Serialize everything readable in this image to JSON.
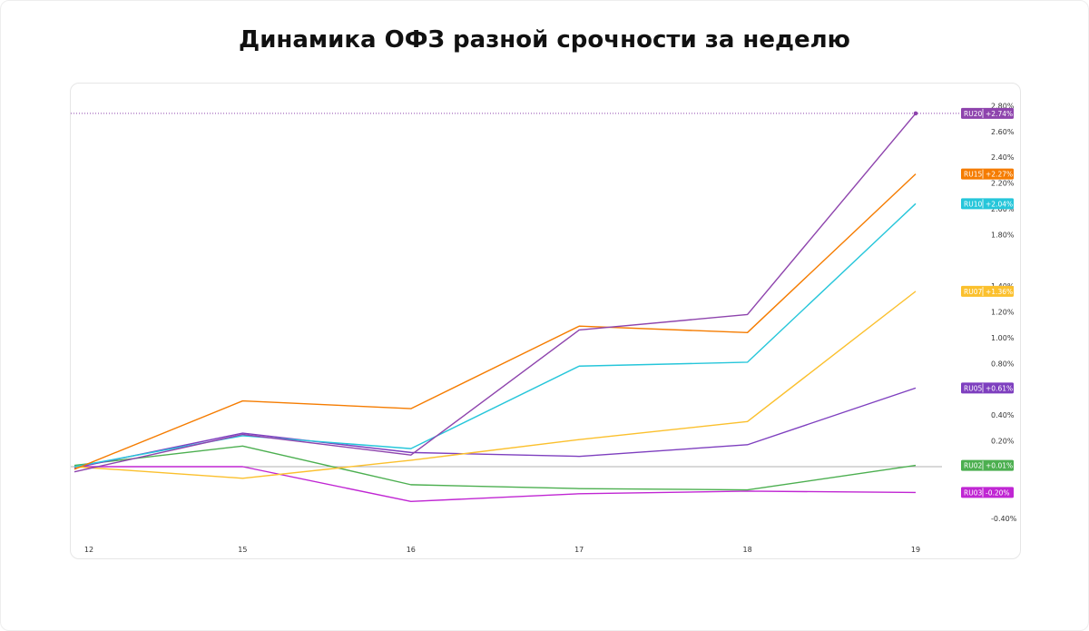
{
  "title": "Динамика ОФЗ разной срочности за неделю",
  "chart_data": {
    "type": "line",
    "title": "Динамика ОФЗ разной срочности за неделю",
    "xlabel": "",
    "ylabel": "",
    "categories": [
      "12",
      "15",
      "16",
      "17",
      "18",
      "19"
    ],
    "ylim": [
      -0.5,
      2.85
    ],
    "ytick_values": [
      -0.4,
      0.2,
      0.4,
      0.8,
      1.0,
      1.2,
      1.4,
      1.8,
      2.0,
      2.2,
      2.4,
      2.6,
      2.8
    ],
    "ytick_labels": [
      "-0.40%",
      "0.20%",
      "0.40%",
      "0.80%",
      "1.00%",
      "1.20%",
      "1.40%",
      "1.80%",
      "2.00%",
      "2.20%",
      "2.40%",
      "2.60%",
      "2.80%"
    ],
    "zero_line": true,
    "grid": false,
    "series": [
      {
        "name": "RU20",
        "value_label": "+2.74%",
        "color": "#8e44ad",
        "values": [
          -0.04,
          0.25,
          0.09,
          1.06,
          1.18,
          2.74
        ]
      },
      {
        "name": "RU15",
        "value_label": "+2.27%",
        "color": "#f57c00",
        "values": [
          -0.02,
          0.51,
          0.45,
          1.09,
          1.04,
          2.27
        ]
      },
      {
        "name": "RU10",
        "value_label": "+2.04%",
        "color": "#26c6da",
        "values": [
          0.0,
          0.24,
          0.14,
          0.78,
          0.81,
          2.04
        ]
      },
      {
        "name": "RU07",
        "value_label": "+1.36%",
        "color": "#fbc02d",
        "values": [
          0.0,
          -0.09,
          0.05,
          0.21,
          0.35,
          1.36
        ]
      },
      {
        "name": "RU05",
        "value_label": "+0.61%",
        "color": "#7e3fbf",
        "values": [
          -0.01,
          0.26,
          0.11,
          0.08,
          0.17,
          0.61
        ]
      },
      {
        "name": "RU02",
        "value_label": "+0.01%",
        "color": "#4caf50",
        "values": [
          0.01,
          0.16,
          -0.14,
          -0.17,
          -0.18,
          0.01
        ]
      },
      {
        "name": "RU03",
        "value_label": "-0.20%",
        "color": "#c026d3",
        "values": [
          0.0,
          0.0,
          -0.27,
          -0.21,
          -0.19,
          -0.2
        ]
      }
    ],
    "legend": "right-edge value badges"
  }
}
